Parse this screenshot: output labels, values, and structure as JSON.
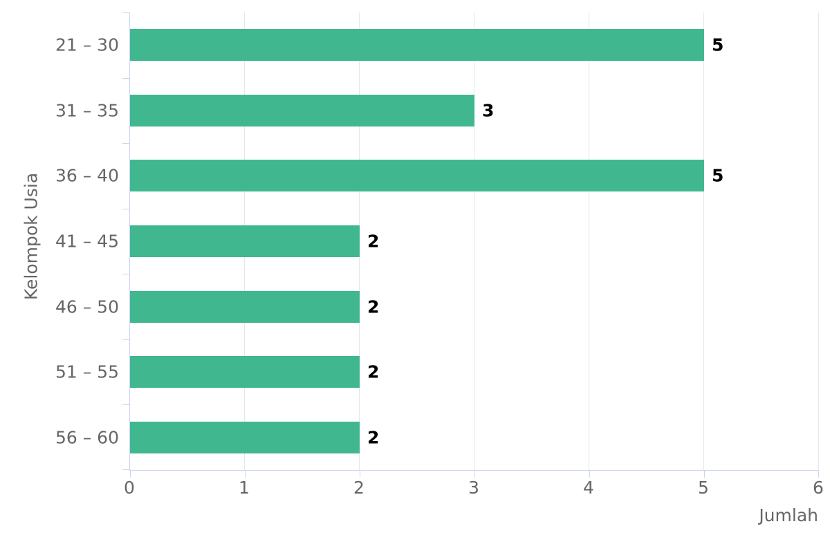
{
  "chart_data": {
    "type": "bar",
    "orientation": "horizontal",
    "categories": [
      "21 – 30",
      "31 – 35",
      "36 – 40",
      "41 – 45",
      "46 – 50",
      "51 – 55",
      "56 – 60"
    ],
    "values": [
      5,
      3,
      5,
      2,
      2,
      2,
      2
    ],
    "data_labels": [
      "5",
      "3",
      "5",
      "2",
      "2",
      "2",
      "2"
    ],
    "xlabel": "Jumlah",
    "ylabel": "Kelompok Usia",
    "xlim": [
      0,
      6
    ],
    "x_ticks": [
      "0",
      "1",
      "2",
      "3",
      "4",
      "5",
      "6"
    ],
    "grid": "vertical-gridlines-only",
    "legend": "none",
    "colors": {
      "bar": "#41b78f",
      "grid": "#e6e6e6",
      "axis": "#ccd6eb",
      "text": "#666666",
      "data_label": "#000000",
      "background": "#ffffff"
    }
  }
}
